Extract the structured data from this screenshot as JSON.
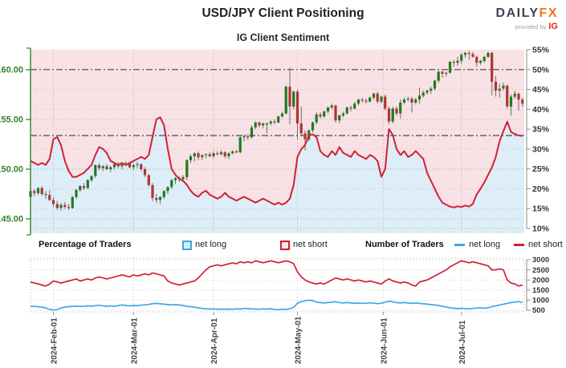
{
  "header": {
    "title": "USD/JPY Client Positioning",
    "subtitle": "IG Client Sentiment",
    "logo": {
      "daily": "DAILY",
      "fx": "FX",
      "provided_by": "provided by",
      "ig": "IG"
    }
  },
  "legend": {
    "percentage_label": "Percentage of Traders",
    "number_label": "Number of Traders",
    "net_long": "net long",
    "net_short": "net short"
  },
  "colors": {
    "sentiment_line": "#d31f36",
    "net_long_blue": "#41a8e1",
    "candle_up": "#207a20",
    "candle_down": "#b23432",
    "candle_wick": "#6e6e6e",
    "bg_above_line": "#f8e2e5",
    "bg_below_line": "#ddeef9",
    "price_axis_green": "#338033",
    "pct_grid_pink": "#e3c6cb",
    "price_grid_green": "#a9cfa9",
    "ref_line_gray": "#55585c",
    "axis_gray": "#8a8a8a",
    "tick_text": "#333333",
    "date_text": "#41454a"
  },
  "chart_data": {
    "type": "candlestick+line",
    "title": "USD/JPY Client Positioning",
    "subtitle": "IG Client Sentiment",
    "legend_position": "below",
    "grid": true,
    "x_tick_labels": [
      "2024-Feb-01",
      "2024-Mar-01",
      "2024-Apr-01",
      "2024-May-01",
      "2024-Jun-01",
      "2024-Jul-01"
    ],
    "x_tick_index": [
      6,
      27,
      48,
      70,
      92.5,
      113
    ],
    "price_axis": {
      "ticks": [
        145,
        150,
        155,
        160
      ],
      "labels": [
        "145.00",
        "150.00",
        "155.00",
        "160.00"
      ],
      "range": [
        144.2,
        162.6
      ]
    },
    "percent_axis": {
      "ticks": [
        10,
        15,
        20,
        25,
        30,
        35,
        40,
        45,
        50,
        55
      ],
      "suffix": "%",
      "range": [
        9,
        55
      ]
    },
    "traders_axis": {
      "ticks": [
        500,
        1000,
        1500,
        2000,
        2500,
        3000
      ],
      "range": [
        450,
        3050
      ]
    },
    "reference_percent_lines": [
      50,
      33.4
    ],
    "candles_ohlc": [
      [
        147.2,
        147.9,
        147.0,
        147.8
      ],
      [
        147.8,
        148.0,
        147.3,
        147.6
      ],
      [
        147.6,
        148.2,
        147.4,
        148.1
      ],
      [
        148.1,
        148.3,
        147.3,
        147.5
      ],
      [
        147.5,
        147.8,
        147.0,
        147.4
      ],
      [
        147.4,
        147.9,
        146.8,
        146.9
      ],
      [
        146.9,
        147.2,
        146.2,
        146.5
      ],
      [
        146.5,
        146.8,
        145.9,
        146.1
      ],
      [
        146.1,
        146.6,
        145.8,
        146.4
      ],
      [
        146.4,
        146.7,
        146.0,
        146.2
      ],
      [
        146.2,
        146.5,
        145.9,
        146.1
      ],
      [
        146.1,
        147.3,
        146.0,
        147.2
      ],
      [
        147.2,
        148.0,
        147.0,
        147.9
      ],
      [
        147.9,
        148.4,
        147.7,
        148.3
      ],
      [
        148.3,
        148.6,
        147.9,
        148.1
      ],
      [
        148.1,
        149.0,
        148.0,
        148.9
      ],
      [
        148.9,
        149.4,
        148.7,
        149.3
      ],
      [
        149.3,
        150.5,
        149.1,
        150.4
      ],
      [
        150.4,
        150.6,
        149.9,
        150.1
      ],
      [
        150.1,
        150.4,
        149.8,
        150.3
      ],
      [
        150.3,
        150.5,
        149.9,
        150.0
      ],
      [
        150.0,
        150.3,
        149.7,
        150.2
      ],
      [
        150.2,
        150.6,
        150.0,
        150.5
      ],
      [
        150.5,
        150.7,
        150.1,
        150.3
      ],
      [
        150.3,
        150.6,
        150.0,
        150.5
      ],
      [
        150.5,
        150.8,
        150.3,
        150.6
      ],
      [
        150.6,
        150.7,
        150.1,
        150.2
      ],
      [
        150.2,
        150.6,
        149.9,
        150.4
      ],
      [
        150.4,
        150.7,
        150.1,
        150.5
      ],
      [
        150.5,
        150.6,
        149.8,
        150.0
      ],
      [
        150.0,
        150.2,
        149.2,
        149.4
      ],
      [
        149.4,
        149.5,
        148.2,
        148.4
      ],
      [
        148.4,
        148.6,
        146.8,
        147.1
      ],
      [
        147.1,
        147.5,
        146.6,
        146.9
      ],
      [
        146.9,
        147.3,
        146.5,
        147.2
      ],
      [
        147.2,
        147.9,
        147.0,
        147.8
      ],
      [
        147.8,
        148.3,
        147.5,
        148.2
      ],
      [
        148.2,
        149.0,
        148.0,
        148.9
      ],
      [
        148.9,
        149.2,
        148.5,
        149.1
      ],
      [
        149.1,
        149.3,
        148.7,
        149.0
      ],
      [
        149.0,
        149.4,
        148.8,
        149.2
      ],
      [
        149.2,
        151.0,
        148.9,
        150.9
      ],
      [
        150.9,
        151.5,
        150.6,
        151.3
      ],
      [
        151.3,
        151.7,
        150.8,
        151.6
      ],
      [
        151.6,
        151.8,
        150.9,
        151.2
      ],
      [
        151.2,
        151.5,
        150.9,
        151.4
      ],
      [
        151.4,
        151.6,
        151.1,
        151.5
      ],
      [
        151.5,
        151.7,
        151.2,
        151.3
      ],
      [
        151.3,
        151.8,
        151.1,
        151.6
      ],
      [
        151.6,
        151.8,
        151.4,
        151.5
      ],
      [
        151.5,
        151.9,
        151.4,
        151.7
      ],
      [
        151.7,
        151.8,
        151.1,
        151.3
      ],
      [
        151.3,
        151.7,
        151.0,
        151.6
      ],
      [
        151.6,
        151.9,
        151.5,
        151.8
      ],
      [
        151.8,
        151.9,
        151.6,
        151.7
      ],
      [
        151.7,
        153.3,
        151.6,
        153.2
      ],
      [
        153.2,
        153.5,
        152.8,
        153.3
      ],
      [
        153.3,
        153.5,
        152.9,
        153.2
      ],
      [
        153.2,
        154.4,
        153.1,
        154.2
      ],
      [
        154.2,
        154.8,
        154.0,
        154.7
      ],
      [
        154.7,
        154.8,
        154.2,
        154.4
      ],
      [
        154.4,
        154.7,
        154.1,
        154.6
      ],
      [
        154.6,
        154.7,
        153.6,
        154.6
      ],
      [
        154.6,
        154.9,
        154.4,
        154.8
      ],
      [
        154.8,
        155.0,
        154.5,
        154.7
      ],
      [
        154.7,
        155.4,
        154.6,
        155.3
      ],
      [
        155.3,
        155.8,
        155.2,
        155.6
      ],
      [
        155.6,
        158.4,
        155.5,
        158.3
      ],
      [
        158.3,
        160.2,
        154.5,
        156.3
      ],
      [
        156.3,
        157.9,
        156.0,
        157.8
      ],
      [
        157.8,
        158.0,
        153.0,
        154.6
      ],
      [
        154.6,
        156.3,
        153.3,
        153.6
      ],
      [
        153.6,
        153.9,
        151.9,
        153.0
      ],
      [
        153.0,
        154.0,
        152.8,
        153.9
      ],
      [
        153.9,
        154.8,
        153.7,
        154.7
      ],
      [
        154.7,
        155.7,
        154.5,
        155.5
      ],
      [
        155.5,
        155.7,
        155.1,
        155.3
      ],
      [
        155.3,
        155.9,
        155.2,
        155.8
      ],
      [
        155.8,
        156.3,
        155.6,
        156.2
      ],
      [
        156.2,
        156.6,
        156.0,
        156.4
      ],
      [
        156.4,
        156.5,
        154.7,
        154.9
      ],
      [
        154.9,
        155.5,
        154.6,
        155.4
      ],
      [
        155.4,
        155.8,
        155.2,
        155.6
      ],
      [
        155.6,
        156.3,
        155.5,
        156.2
      ],
      [
        156.2,
        156.4,
        155.8,
        156.1
      ],
      [
        156.1,
        156.8,
        156.0,
        156.6
      ],
      [
        156.6,
        157.1,
        156.4,
        157.0
      ],
      [
        157.0,
        157.2,
        156.7,
        156.9
      ],
      [
        156.9,
        157.1,
        156.6,
        156.8
      ],
      [
        156.8,
        157.3,
        156.7,
        157.2
      ],
      [
        157.2,
        157.7,
        157.0,
        157.6
      ],
      [
        157.6,
        157.8,
        156.6,
        156.8
      ],
      [
        156.8,
        157.4,
        156.6,
        157.3
      ],
      [
        157.3,
        157.5,
        155.9,
        156.1
      ],
      [
        156.1,
        156.3,
        154.5,
        154.8
      ],
      [
        154.8,
        156.3,
        154.6,
        156.1
      ],
      [
        156.1,
        156.3,
        155.4,
        155.6
      ],
      [
        155.6,
        157.0,
        155.1,
        156.7
      ],
      [
        156.7,
        157.2,
        156.5,
        157.0
      ],
      [
        157.0,
        157.3,
        156.8,
        157.1
      ],
      [
        157.1,
        157.3,
        155.7,
        156.7
      ],
      [
        156.7,
        157.2,
        156.5,
        157.0
      ],
      [
        157.0,
        158.2,
        156.6,
        157.4
      ],
      [
        157.4,
        157.9,
        157.2,
        157.7
      ],
      [
        157.7,
        158.0,
        157.5,
        157.9
      ],
      [
        157.9,
        158.3,
        157.6,
        158.1
      ],
      [
        158.1,
        159.0,
        157.9,
        158.9
      ],
      [
        158.9,
        159.9,
        158.7,
        159.8
      ],
      [
        159.8,
        159.9,
        159.2,
        159.6
      ],
      [
        159.6,
        159.8,
        159.3,
        159.7
      ],
      [
        159.7,
        160.9,
        159.6,
        160.8
      ],
      [
        160.8,
        161.0,
        160.3,
        160.7
      ],
      [
        160.7,
        161.3,
        160.4,
        160.9
      ],
      [
        160.9,
        161.7,
        160.6,
        161.5
      ],
      [
        161.5,
        161.8,
        161.2,
        161.7
      ],
      [
        161.7,
        161.9,
        161.0,
        161.6
      ],
      [
        161.6,
        161.8,
        161.2,
        161.3
      ],
      [
        161.3,
        161.4,
        160.3,
        160.7
      ],
      [
        160.7,
        161.0,
        160.5,
        160.9
      ],
      [
        160.9,
        161.4,
        160.7,
        161.3
      ],
      [
        161.3,
        161.8,
        161.2,
        161.7
      ],
      [
        161.7,
        161.8,
        157.4,
        158.8
      ],
      [
        158.8,
        159.4,
        157.3,
        157.9
      ],
      [
        157.9,
        158.6,
        157.2,
        158.1
      ],
      [
        158.1,
        158.7,
        157.9,
        158.4
      ],
      [
        158.4,
        158.5,
        156.1,
        156.3
      ],
      [
        156.3,
        157.5,
        155.4,
        157.3
      ],
      [
        157.3,
        157.9,
        157.1,
        157.6
      ],
      [
        157.6,
        157.7,
        155.9,
        157.0
      ],
      [
        157.0,
        157.2,
        156.3,
        156.6
      ]
    ],
    "net_short_percent": [
      27,
      26.5,
      26,
      26.5,
      26,
      27.5,
      32.5,
      33,
      31,
      27,
      24.5,
      23,
      23,
      23.5,
      24,
      25,
      26,
      28.5,
      30.5,
      30,
      29,
      27,
      26.5,
      26,
      26.5,
      26,
      26.5,
      27,
      27.5,
      28,
      27.5,
      28.5,
      33,
      37.5,
      38,
      36,
      30,
      25,
      23.5,
      22.5,
      22,
      21,
      19.5,
      18.5,
      18,
      19,
      19.5,
      18.5,
      18,
      17.5,
      18,
      19,
      18,
      17.5,
      17,
      17.5,
      18,
      17.5,
      17,
      16.5,
      17,
      17.5,
      17,
      16.5,
      16,
      16.5,
      16,
      16.5,
      17.5,
      21,
      28,
      30,
      31,
      33.5,
      33.7,
      33,
      29.5,
      28.5,
      28,
      29.5,
      28.5,
      30.5,
      29,
      28.5,
      28,
      29.5,
      28.5,
      28,
      27.5,
      28.5,
      28,
      27,
      23,
      25,
      35,
      33.5,
      30,
      28.5,
      29.5,
      28,
      28.5,
      29.5,
      28.5,
      27.5,
      24,
      22,
      20,
      18,
      16.5,
      16,
      15.5,
      15.3,
      15.6,
      15.4,
      15.8,
      15.5,
      16.2,
      18.6,
      20,
      21.6,
      23.5,
      25.4,
      28,
      32,
      34.5,
      36.9,
      34.3,
      33.8,
      33.4,
      33.3
    ],
    "net_short_traders": [
      1900,
      1850,
      1800,
      1750,
      1700,
      1800,
      1950,
      1900,
      1850,
      1900,
      1950,
      2000,
      2050,
      1950,
      2000,
      2050,
      2000,
      2100,
      2150,
      2100,
      2050,
      2100,
      2150,
      2200,
      2250,
      2200,
      2150,
      2250,
      2200,
      2250,
      2300,
      2250,
      2350,
      2300,
      2250,
      2200,
      1950,
      1850,
      1800,
      1750,
      1800,
      1850,
      1900,
      1950,
      2100,
      2300,
      2500,
      2650,
      2700,
      2750,
      2700,
      2750,
      2800,
      2850,
      2800,
      2900,
      2850,
      2900,
      2850,
      2950,
      2900,
      2850,
      2900,
      2950,
      2900,
      2850,
      2900,
      2950,
      2900,
      2800,
      2400,
      2150,
      2000,
      1900,
      1850,
      1800,
      1850,
      1800,
      1900,
      2000,
      2100,
      2050,
      2000,
      2050,
      2000,
      1950,
      2000,
      1950,
      1900,
      1950,
      1900,
      1850,
      1800,
      1950,
      2050,
      1950,
      1900,
      1850,
      1900,
      1850,
      1750,
      1700,
      1900,
      1950,
      2000,
      2100,
      2200,
      2300,
      2400,
      2500,
      2650,
      2750,
      2850,
      2950,
      2900,
      2850,
      2900,
      2850,
      2800,
      2750,
      2700,
      2500,
      2500,
      2550,
      2500,
      2000,
      1850,
      1800,
      1700,
      1750
    ],
    "net_long_traders": [
      700,
      690,
      680,
      650,
      620,
      540,
      510,
      530,
      620,
      660,
      680,
      690,
      700,
      690,
      700,
      720,
      700,
      730,
      750,
      720,
      700,
      720,
      700,
      730,
      760,
      740,
      720,
      740,
      730,
      750,
      770,
      790,
      820,
      840,
      820,
      800,
      780,
      760,
      780,
      760,
      740,
      700,
      680,
      650,
      620,
      590,
      570,
      560,
      570,
      550,
      560,
      550,
      560,
      550,
      570,
      560,
      590,
      580,
      570,
      560,
      550,
      570,
      560,
      580,
      540,
      530,
      550,
      540,
      580,
      640,
      850,
      930,
      970,
      1000,
      980,
      900,
      880,
      860,
      880,
      900,
      920,
      880,
      860,
      880,
      860,
      840,
      860,
      840,
      850,
      870,
      850,
      830,
      850,
      900,
      950,
      920,
      880,
      860,
      880,
      860,
      840,
      860,
      840,
      820,
      800,
      780,
      760,
      740,
      700,
      660,
      620,
      600,
      580,
      600,
      580,
      570,
      590,
      610,
      620,
      600,
      620,
      680,
      720,
      760,
      800,
      840,
      880,
      900,
      930,
      880
    ]
  }
}
